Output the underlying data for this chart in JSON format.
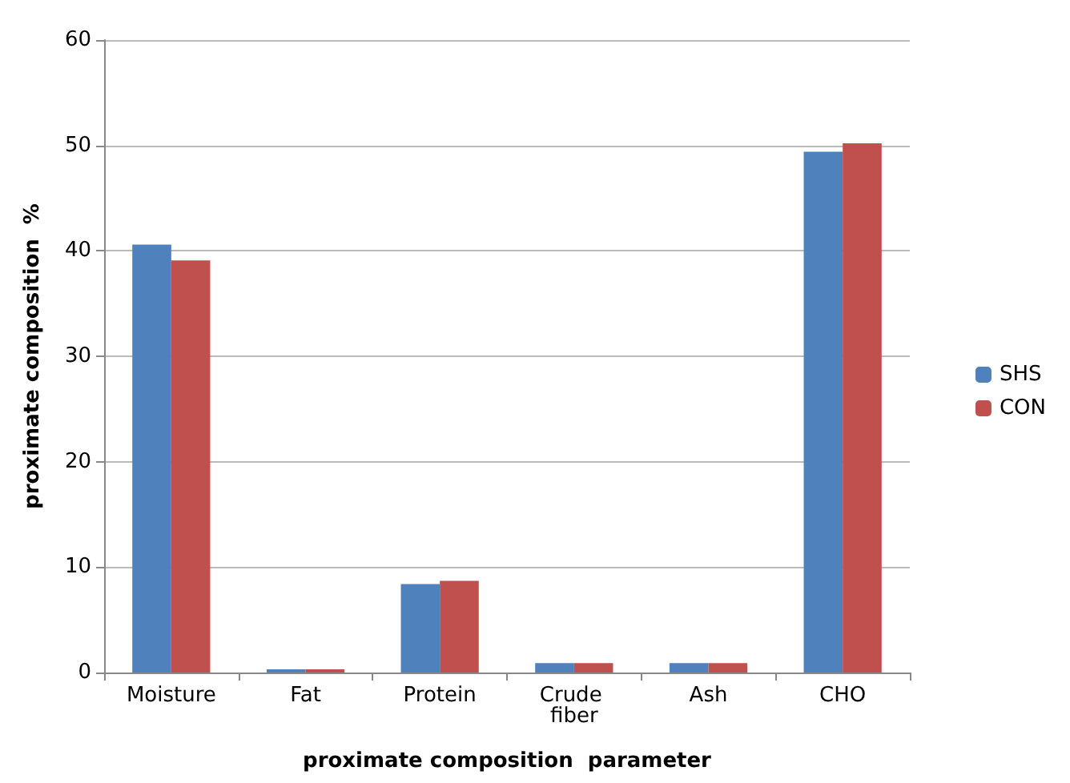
{
  "chart_data": {
    "type": "bar",
    "xlabel": "proximate composition  parameter",
    "ylabel": "proximate composition  %",
    "categories": [
      "Moisture",
      "Fat",
      "Protein",
      "Crude fiber",
      "Ash",
      "CHO"
    ],
    "series": [
      {
        "name": "SHS",
        "color": "#4f81bd",
        "values": [
          40.6,
          0.3,
          8.4,
          0.9,
          0.9,
          49.4
        ]
      },
      {
        "name": "CON",
        "color": "#c0504d",
        "values": [
          39.1,
          0.3,
          8.7,
          0.9,
          0.9,
          50.2
        ]
      }
    ],
    "ylim": [
      0,
      60
    ],
    "yticks": [
      0,
      10,
      20,
      30,
      40,
      50,
      60
    ],
    "grid": "y",
    "legend": "right"
  }
}
